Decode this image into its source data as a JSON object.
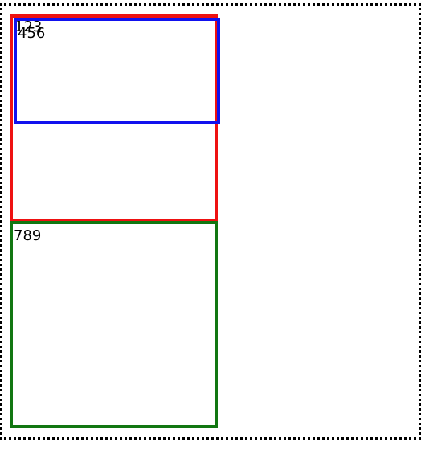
{
  "boxes": {
    "red": {
      "label": "123",
      "border_color": "#ee1111"
    },
    "blue": {
      "label": "456",
      "border_color": "#1111ee"
    },
    "green": {
      "label": "789",
      "border_color": "#117711"
    }
  }
}
